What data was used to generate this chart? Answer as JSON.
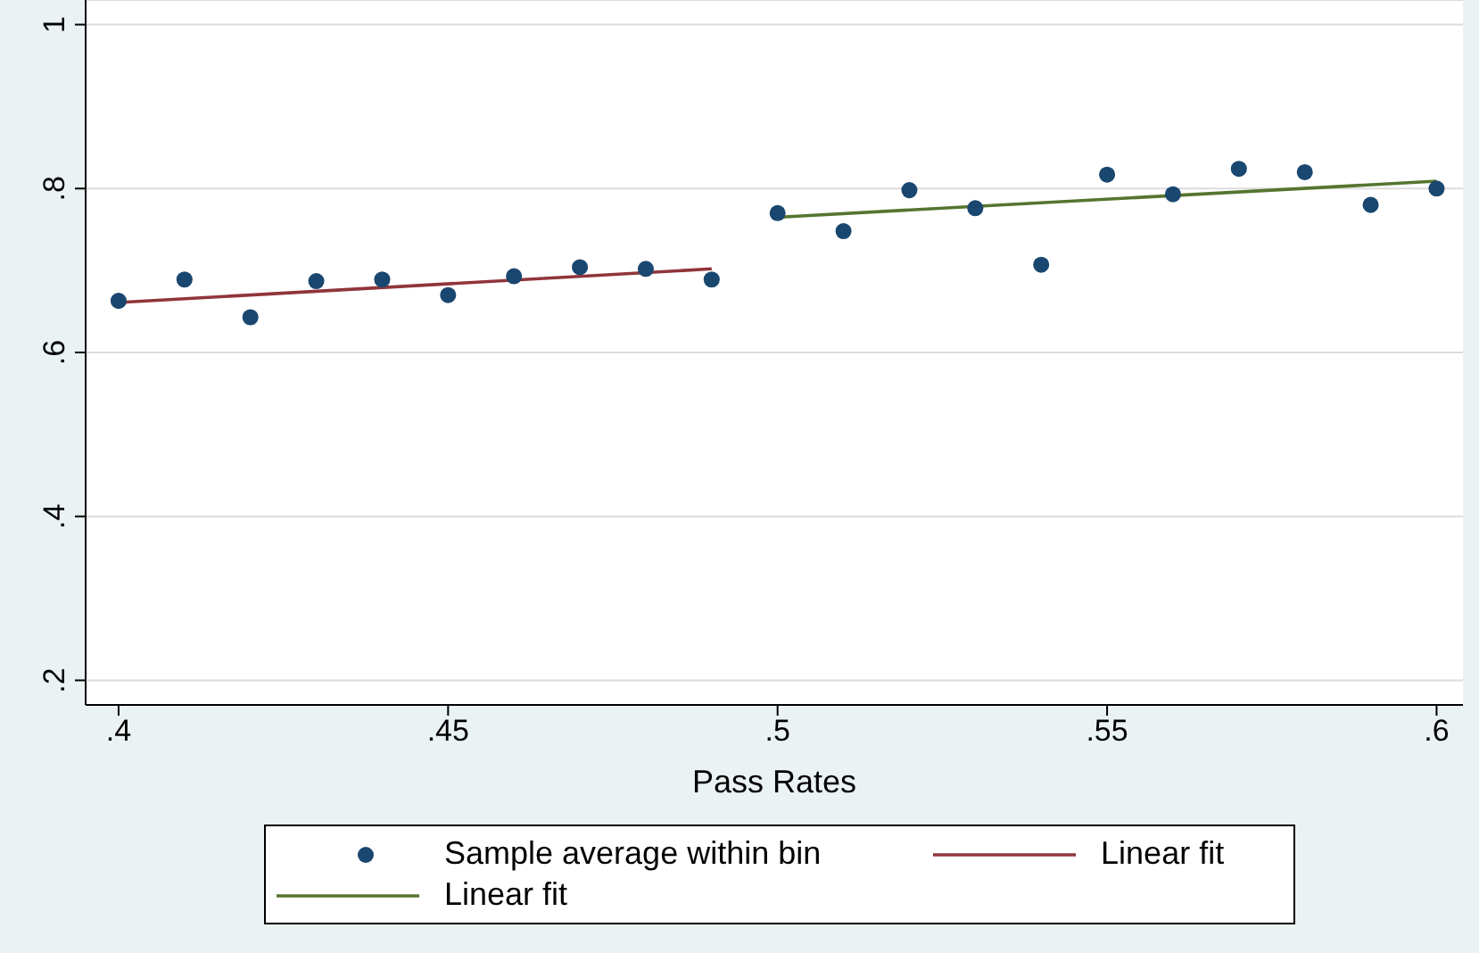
{
  "chart_data": {
    "type": "scatter",
    "xlabel": "Pass Rates",
    "xlim": [
      0.395,
      0.604
    ],
    "ylim": [
      0.17,
      1.03
    ],
    "xticks": [
      {
        "value": 0.4,
        "label": ".4"
      },
      {
        "value": 0.45,
        "label": ".45"
      },
      {
        "value": 0.5,
        "label": ".5"
      },
      {
        "value": 0.55,
        "label": ".55"
      },
      {
        "value": 0.6,
        "label": ".6"
      }
    ],
    "yticks": [
      {
        "value": 0.2,
        "label": ".2"
      },
      {
        "value": 0.4,
        "label": ".4"
      },
      {
        "value": 0.6,
        "label": ".6"
      },
      {
        "value": 0.8,
        "label": ".8"
      },
      {
        "value": 1,
        "label": "1"
      }
    ],
    "grid": "y",
    "legend": "bottom",
    "series": [
      {
        "name": "Sample average within bin",
        "color": "#1a476f",
        "marker": "circle",
        "x": [
          0.4,
          0.41,
          0.42,
          0.43,
          0.44,
          0.45,
          0.46,
          0.47,
          0.48,
          0.49,
          0.5,
          0.51,
          0.52,
          0.53,
          0.54,
          0.55,
          0.56,
          0.57,
          0.58,
          0.59,
          0.6
        ],
        "values": [
          0.663,
          0.689,
          0.643,
          0.687,
          0.689,
          0.67,
          0.693,
          0.704,
          0.702,
          0.689,
          0.77,
          0.748,
          0.798,
          0.776,
          0.707,
          0.817,
          0.793,
          0.824,
          0.82,
          0.78,
          0.8
        ]
      },
      {
        "name": "Linear fit",
        "type": "line",
        "color": "#90353b",
        "line_style": "solid",
        "x": [
          0.4,
          0.49
        ],
        "values": [
          0.661,
          0.702
        ]
      },
      {
        "name": "Linear fit",
        "type": "line",
        "color": "#55752f",
        "line_style": "solid",
        "x": [
          0.5,
          0.6
        ],
        "values": [
          0.765,
          0.809
        ]
      }
    ]
  }
}
